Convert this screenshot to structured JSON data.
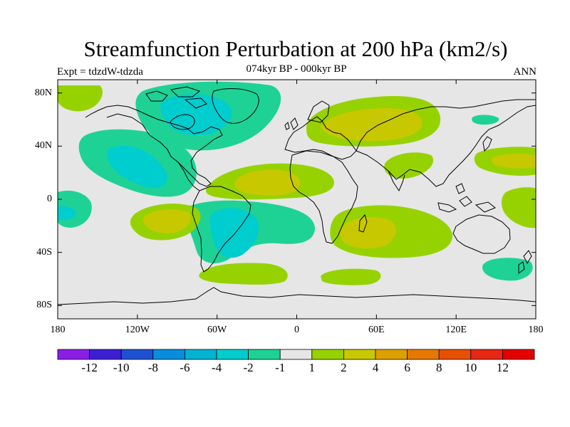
{
  "title": "Streamfunction Perturbation at 200 hPa (km2/s)",
  "experiment": "Expt = tdzdW-tdzda",
  "subtitle": "074kyr BP - 000kyr BP",
  "season": "ANN",
  "map": {
    "projection": "cylindrical equidistant",
    "lon_range": [
      -180,
      180
    ],
    "lat_range": [
      -90,
      90
    ],
    "y_ticks": [
      {
        "label": "80N",
        "lat": 80
      },
      {
        "label": "40N",
        "lat": 40
      },
      {
        "label": "0",
        "lat": 0
      },
      {
        "label": "40S",
        "lat": -40
      },
      {
        "label": "80S",
        "lat": -80
      }
    ],
    "x_ticks": [
      {
        "label": "180",
        "lon": -180
      },
      {
        "label": "120W",
        "lon": -120
      },
      {
        "label": "60W",
        "lon": -60
      },
      {
        "label": "0",
        "lon": 0
      },
      {
        "label": "60E",
        "lon": 60
      },
      {
        "label": "120E",
        "lon": 120
      },
      {
        "label": "180",
        "lon": 180
      }
    ],
    "land_background": "#e6e6e6",
    "coastline_color": "#000000"
  },
  "colorbar": {
    "labels": [
      "-12",
      "-10",
      "-8",
      "-6",
      "-4",
      "-2",
      "-1",
      "1",
      "2",
      "4",
      "6",
      "8",
      "10",
      "12"
    ],
    "colors": [
      "#8a1ee6",
      "#3c1ed2",
      "#1e50d2",
      "#0a8cdc",
      "#00b4d2",
      "#00cdcd",
      "#1ed296",
      "#e6e6e6",
      "#96d200",
      "#c8c800",
      "#dca000",
      "#e67800",
      "#e65000",
      "#e62814",
      "#e60000"
    ]
  },
  "contour_regions": [
    {
      "name": "north-pacific-negative",
      "value": -2,
      "color": "#1ed296"
    },
    {
      "name": "north-america-core",
      "value": -4,
      "color": "#00cdcd"
    },
    {
      "name": "greenland-negative",
      "value": -4,
      "color": "#00cdcd"
    },
    {
      "name": "eurasia-positive",
      "value": 2,
      "color": "#96d200"
    },
    {
      "name": "eurasia-core",
      "value": 4,
      "color": "#c8c800"
    },
    {
      "name": "tropical-atlantic-positive",
      "value": 2,
      "color": "#96d200"
    },
    {
      "name": "tropical-atlantic-core",
      "value": 4,
      "color": "#c8c800"
    },
    {
      "name": "south-america-negative",
      "value": -4,
      "color": "#00cdcd"
    },
    {
      "name": "south-pacific-positive",
      "value": 4,
      "color": "#c8c800"
    },
    {
      "name": "south-africa-positive",
      "value": 2,
      "color": "#96d200"
    },
    {
      "name": "south-africa-core",
      "value": 4,
      "color": "#c8c800"
    },
    {
      "name": "western-pacific-positive",
      "value": 4,
      "color": "#c8c800"
    },
    {
      "name": "southern-ocean-positive",
      "value": 2,
      "color": "#96d200"
    },
    {
      "name": "tasman-negative",
      "value": -2,
      "color": "#1ed296"
    }
  ]
}
